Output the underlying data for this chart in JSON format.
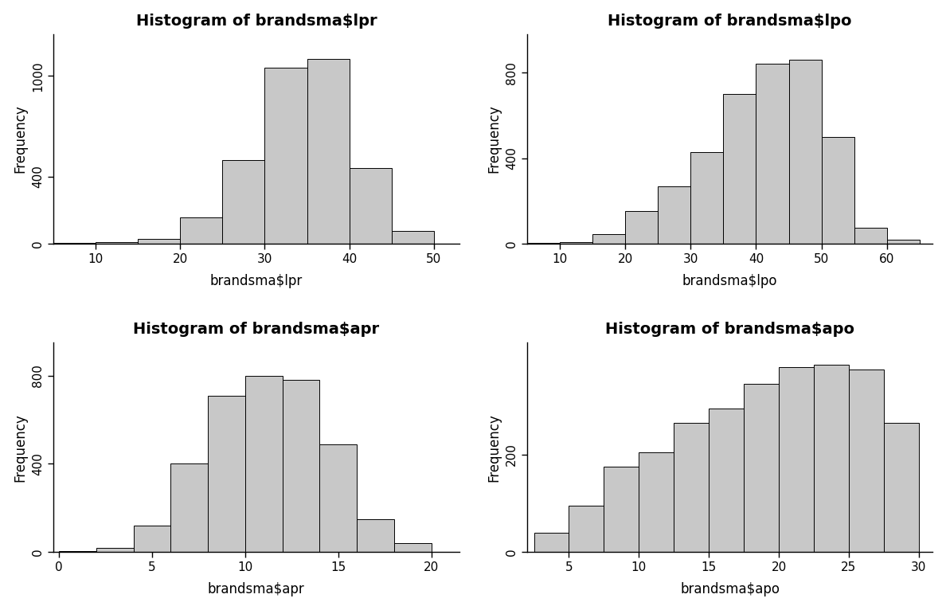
{
  "plots": [
    {
      "title": "Histogram of brandsma$lpr",
      "xlabel": "brandsma$lpr",
      "ylabel": "Frequency",
      "bin_edges": [
        5,
        10,
        15,
        20,
        25,
        30,
        35,
        40,
        45,
        50
      ],
      "frequencies": [
        4,
        10,
        30,
        160,
        500,
        1050,
        1100,
        450,
        75
      ],
      "xlim": [
        5,
        53
      ],
      "xticks": [
        10,
        20,
        30,
        40,
        50
      ],
      "ylim": [
        0,
        1250
      ],
      "yticks": [
        0,
        400,
        1000
      ]
    },
    {
      "title": "Histogram of brandsma$lpo",
      "xlabel": "brandsma$lpo",
      "ylabel": "Frequency",
      "bin_edges": [
        5,
        10,
        15,
        20,
        25,
        30,
        35,
        40,
        45,
        50,
        55,
        60,
        65
      ],
      "frequencies": [
        4,
        8,
        45,
        155,
        270,
        430,
        700,
        840,
        860,
        500,
        75,
        20
      ],
      "xlim": [
        5,
        67
      ],
      "xticks": [
        10,
        20,
        30,
        40,
        50,
        60
      ],
      "ylim": [
        0,
        980
      ],
      "yticks": [
        0,
        400,
        800
      ]
    },
    {
      "title": "Histogram of brandsma$apr",
      "xlabel": "brandsma$apr",
      "ylabel": "Frequency",
      "bin_edges": [
        0,
        2,
        4,
        6,
        8,
        10,
        12,
        14,
        16,
        18,
        20
      ],
      "frequencies": [
        4,
        20,
        120,
        400,
        710,
        800,
        780,
        490,
        150,
        40
      ],
      "xlim": [
        -0.3,
        21.5
      ],
      "xticks": [
        0,
        5,
        10,
        15,
        20
      ],
      "ylim": [
        0,
        950
      ],
      "yticks": [
        0,
        400,
        800
      ]
    },
    {
      "title": "Histogram of brandsma$apo",
      "xlabel": "brandsma$apo",
      "ylabel": "Frequency",
      "bin_edges": [
        2.5,
        5,
        7.5,
        10,
        12.5,
        15,
        17.5,
        20,
        22.5,
        25,
        27.5,
        30
      ],
      "frequencies": [
        40,
        95,
        175,
        205,
        265,
        295,
        345,
        380,
        385,
        375,
        265
      ],
      "xlim": [
        2,
        31
      ],
      "xticks": [
        5,
        10,
        15,
        20,
        25,
        30
      ],
      "ylim": [
        0,
        430
      ],
      "yticks": [
        0,
        200
      ]
    }
  ],
  "bar_color": "#c8c8c8",
  "bar_edgecolor": "#000000",
  "background_color": "#ffffff",
  "title_fontsize": 14,
  "label_fontsize": 12,
  "tick_fontsize": 11,
  "title_fontweight": "bold",
  "bar_linewidth": 0.7
}
